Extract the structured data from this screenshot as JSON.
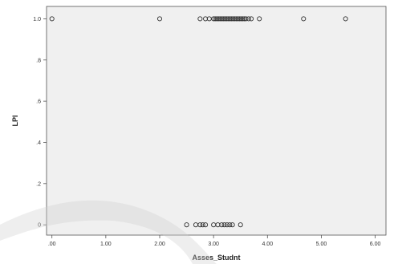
{
  "chart_data": {
    "type": "scatter",
    "xlabel": "Asses_Studnt",
    "ylabel": "LPI",
    "xlim": [
      -0.1,
      6.2
    ],
    "ylim": [
      -0.05,
      1.06
    ],
    "xticks": [
      ".00",
      "1.00",
      "2.00",
      "3.00",
      "4.00",
      "5.00",
      "6.00"
    ],
    "xtick_values": [
      0,
      1,
      2,
      3,
      4,
      5,
      6
    ],
    "yticks": [
      "0",
      ".2",
      ".4",
      ".6",
      ".8",
      "1.0"
    ],
    "ytick_values": [
      0,
      0.2,
      0.4,
      0.6,
      0.8,
      1.0
    ],
    "grid": false,
    "colors": {
      "plot_bg": "#f0f0f0",
      "marker_stroke": "#333333",
      "axis": "#555555"
    },
    "series": [
      {
        "values": [
          [
            0.0,
            1.0
          ],
          [
            2.0,
            1.0
          ],
          [
            2.75,
            1.0
          ],
          [
            2.85,
            1.0
          ],
          [
            2.92,
            1.0
          ],
          [
            3.0,
            1.0
          ],
          [
            3.03,
            1.0
          ],
          [
            3.06,
            1.0
          ],
          [
            3.09,
            1.0
          ],
          [
            3.12,
            1.0
          ],
          [
            3.15,
            1.0
          ],
          [
            3.18,
            1.0
          ],
          [
            3.21,
            1.0
          ],
          [
            3.24,
            1.0
          ],
          [
            3.27,
            1.0
          ],
          [
            3.3,
            1.0
          ],
          [
            3.33,
            1.0
          ],
          [
            3.36,
            1.0
          ],
          [
            3.39,
            1.0
          ],
          [
            3.42,
            1.0
          ],
          [
            3.45,
            1.0
          ],
          [
            3.48,
            1.0
          ],
          [
            3.51,
            1.0
          ],
          [
            3.54,
            1.0
          ],
          [
            3.57,
            1.0
          ],
          [
            3.6,
            1.0
          ],
          [
            3.65,
            1.0
          ],
          [
            3.7,
            1.0
          ],
          [
            3.85,
            1.0
          ],
          [
            4.67,
            1.0
          ],
          [
            5.45,
            1.0
          ],
          [
            2.5,
            0.0
          ],
          [
            2.67,
            0.0
          ],
          [
            2.75,
            0.0
          ],
          [
            2.8,
            0.0
          ],
          [
            2.85,
            0.0
          ],
          [
            3.0,
            0.0
          ],
          [
            3.08,
            0.0
          ],
          [
            3.15,
            0.0
          ],
          [
            3.2,
            0.0
          ],
          [
            3.25,
            0.0
          ],
          [
            3.3,
            0.0
          ],
          [
            3.35,
            0.0
          ],
          [
            3.5,
            0.0
          ]
        ]
      }
    ]
  }
}
